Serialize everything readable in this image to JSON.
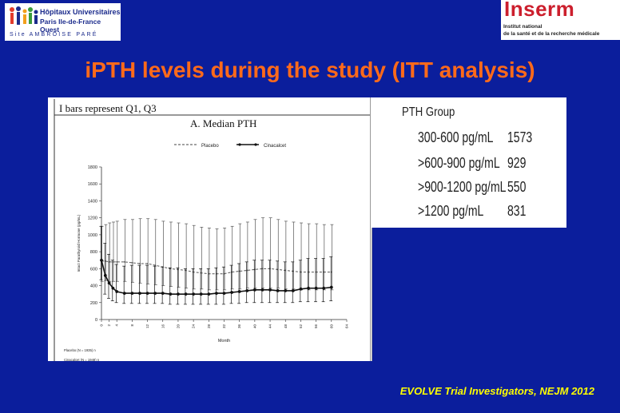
{
  "slide": {
    "title": "iPTH levels during the study (ITT analysis)",
    "citation": "EVOLVE Trial Investigators, NEJM 2012"
  },
  "logo_left": {
    "line1": "Hôpitaux Universitaires",
    "line2": "Paris Ile-de-France Ouest",
    "line3": "Site AMBROISE PARÉ"
  },
  "logo_right": {
    "wordmark": "Inserm",
    "line1": "Institut national",
    "line2": "de la santé et de la recherche médicale"
  },
  "pth_table": {
    "header": "PTH Group",
    "rows": [
      {
        "group": "300-600 pg/mL",
        "n": "1573"
      },
      {
        "group": ">600-900 pg/mL",
        "n": "929"
      },
      {
        "group": ">900-1200 pg/mL",
        "n": "550"
      },
      {
        "group": ">1200 pg/mL",
        "n": "831"
      }
    ]
  },
  "chart_data": {
    "type": "line",
    "note": "I bars represent Q1, Q3",
    "title": "A.  Median PTH",
    "xlabel": "Month",
    "ylabel": "Intact Parathyroid Hormone (pg/mL)",
    "ylim": [
      0,
      1800
    ],
    "yticks": [
      0,
      200,
      400,
      600,
      800,
      1000,
      1200,
      1400,
      1600,
      1800
    ],
    "xlim": [
      0,
      64
    ],
    "xticks": [
      0,
      2,
      4,
      8,
      12,
      16,
      20,
      24,
      28,
      32,
      36,
      40,
      44,
      48,
      52,
      56,
      60,
      64
    ],
    "legend_placement": "top-center",
    "error_bars": "Q1-Q3",
    "series": [
      {
        "name": "Placebo",
        "style": "dashed",
        "x": [
          0,
          1,
          2,
          3,
          4,
          6,
          8,
          10,
          12,
          14,
          16,
          18,
          20,
          22,
          24,
          26,
          28,
          30,
          32,
          34,
          36,
          38,
          40,
          42,
          44,
          46,
          48,
          50,
          52,
          54,
          56,
          58,
          60
        ],
        "y": [
          690,
          690,
          680,
          680,
          680,
          680,
          670,
          660,
          660,
          640,
          620,
          600,
          590,
          580,
          560,
          550,
          540,
          540,
          540,
          560,
          570,
          580,
          590,
          600,
          600,
          590,
          580,
          570,
          560,
          560,
          560,
          560,
          560
        ],
        "q1": [
          450,
          460,
          450,
          450,
          450,
          450,
          440,
          430,
          420,
          410,
          400,
          390,
          380,
          370,
          360,
          360,
          350,
          350,
          350,
          360,
          360,
          370,
          370,
          370,
          370,
          370,
          360,
          360,
          350,
          350,
          350,
          350,
          350
        ],
        "q3": [
          1100,
          1120,
          1140,
          1150,
          1160,
          1180,
          1180,
          1190,
          1190,
          1180,
          1160,
          1150,
          1140,
          1130,
          1110,
          1090,
          1080,
          1070,
          1080,
          1100,
          1130,
          1150,
          1180,
          1200,
          1200,
          1180,
          1160,
          1150,
          1140,
          1130,
          1130,
          1120,
          1120
        ]
      },
      {
        "name": "Cinacalcet",
        "style": "solid",
        "x": [
          0,
          1,
          2,
          3,
          4,
          6,
          8,
          10,
          12,
          14,
          16,
          18,
          20,
          22,
          24,
          26,
          28,
          30,
          32,
          34,
          36,
          38,
          40,
          42,
          44,
          46,
          48,
          50,
          52,
          54,
          56,
          58,
          60
        ],
        "y": [
          700,
          520,
          430,
          370,
          330,
          310,
          310,
          310,
          310,
          310,
          310,
          300,
          300,
          300,
          300,
          300,
          300,
          310,
          310,
          320,
          330,
          340,
          350,
          350,
          350,
          340,
          340,
          340,
          360,
          370,
          370,
          370,
          380
        ],
        "q1": [
          470,
          300,
          250,
          220,
          200,
          190,
          190,
          190,
          190,
          190,
          190,
          180,
          180,
          180,
          180,
          180,
          180,
          180,
          180,
          190,
          190,
          200,
          200,
          200,
          200,
          200,
          200,
          200,
          210,
          210,
          210,
          210,
          220
        ],
        "q3": [
          1100,
          900,
          770,
          700,
          650,
          630,
          640,
          640,
          640,
          630,
          620,
          610,
          610,
          600,
          600,
          600,
          600,
          610,
          620,
          640,
          660,
          680,
          700,
          700,
          700,
          690,
          680,
          680,
          700,
          720,
          720,
          720,
          740
        ]
      }
    ],
    "at_risk_labels": [
      "Placebo (N = 1935) n",
      "Cinacalcet (N = 1948) n"
    ]
  }
}
